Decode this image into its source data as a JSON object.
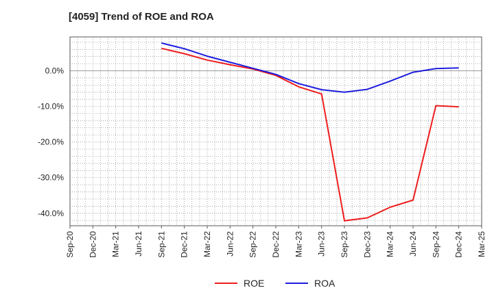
{
  "chart_data": {
    "type": "line",
    "title": "[4059]  Trend of ROE and ROA",
    "xlabel": "",
    "ylabel": "",
    "x_ticks": [
      "Sep-20",
      "Dec-20",
      "Mar-21",
      "Jun-21",
      "Sep-21",
      "Dec-21",
      "Mar-22",
      "Jun-22",
      "Sep-22",
      "Dec-22",
      "Mar-23",
      "Jun-23",
      "Sep-23",
      "Dec-23",
      "Mar-24",
      "Jun-24",
      "Sep-24",
      "Dec-24",
      "Mar-25"
    ],
    "y_ticks": [
      0,
      -10,
      -20,
      -30,
      -40
    ],
    "y_tick_labels": [
      "0.0%",
      "-10.0%",
      "-20.0%",
      "-30.0%",
      "-40.0%"
    ],
    "ylim": [
      -43.5,
      9.5
    ],
    "grid": true,
    "legend_position": "bottom",
    "categories": [
      "Sep-21",
      "Dec-21",
      "Mar-22",
      "Jun-22",
      "Sep-22",
      "Dec-22",
      "Mar-23",
      "Jun-23",
      "Sep-23",
      "Dec-23",
      "Mar-24",
      "Jun-24",
      "Sep-24",
      "Dec-24"
    ],
    "series": [
      {
        "name": "ROE",
        "color": "#ee1c1c",
        "values": [
          6.3,
          4.8,
          3.0,
          1.7,
          0.5,
          -1.3,
          -4.5,
          -6.5,
          -42.1,
          -41.3,
          -38.3,
          -36.3,
          -9.8,
          -10.1
        ]
      },
      {
        "name": "ROA",
        "color": "#1c1cdd",
        "values": [
          7.8,
          6.2,
          4.1,
          2.4,
          0.7,
          -1.0,
          -3.6,
          -5.3,
          -6.0,
          -5.2,
          -2.9,
          -0.4,
          0.6,
          0.8
        ]
      }
    ]
  }
}
